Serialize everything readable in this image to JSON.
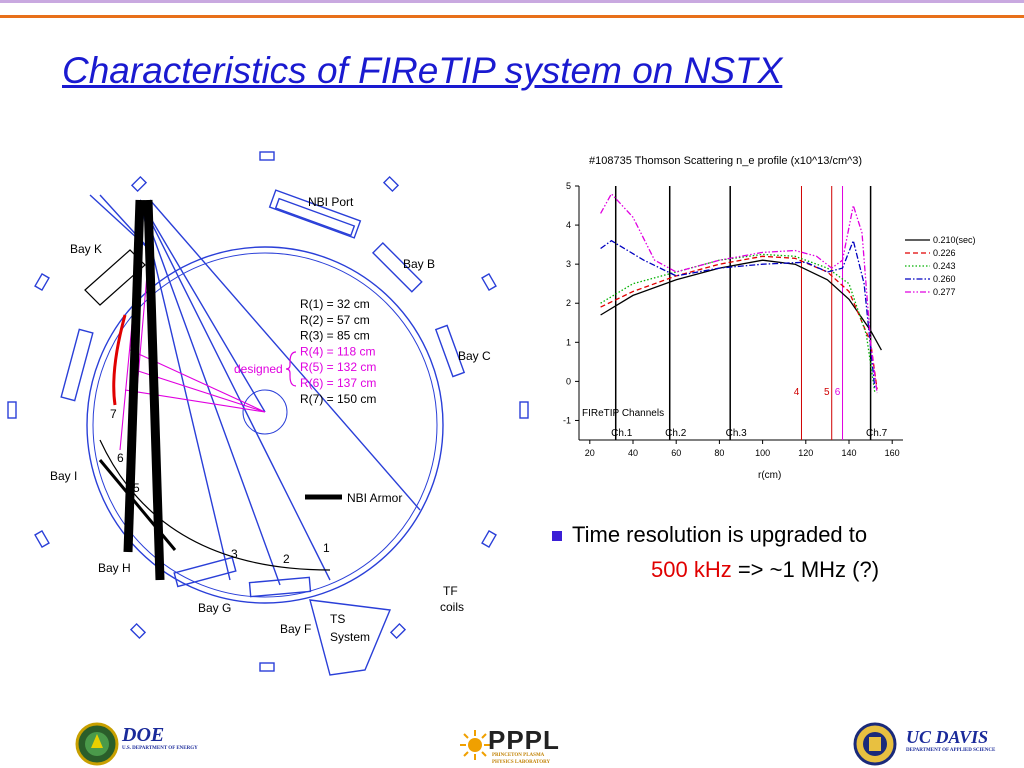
{
  "slide": {
    "title": "Characteristics of FIReTIP system on NSTX",
    "bullet": {
      "line1": "Time resolution is upgraded  to",
      "line2_red": "500 kHz",
      "line2_rest": " => ~1 MHz (?)"
    }
  },
  "diagram": {
    "labels": {
      "nbi_port": "NBI Port",
      "bay_b": "Bay B",
      "bay_c": "Bay C",
      "bay_k": "Bay K",
      "bay_i": "Bay I",
      "bay_h": "Bay H",
      "bay_g": "Bay G",
      "bay_f": "Bay F",
      "ts_system_1": "TS",
      "ts_system_2": "System",
      "tf_coils_1": "TF",
      "tf_coils_2": "coils",
      "nbi_armor": "NBI Armor",
      "designed": "designed",
      "num_1": "1",
      "num_2": "2",
      "num_3": "3",
      "num_5": "5",
      "num_6": "6",
      "num_7": "7"
    },
    "radii": [
      {
        "text": "R(1) = 32 cm",
        "designed": false
      },
      {
        "text": "R(2) = 57 cm",
        "designed": false
      },
      {
        "text": "R(3) = 85 cm",
        "designed": false
      },
      {
        "text": "R(4) = 118 cm",
        "designed": true
      },
      {
        "text": "R(5) = 132 cm",
        "designed": true
      },
      {
        "text": "R(6) = 137 cm",
        "designed": true
      },
      {
        "text": "R(7) = 150 cm",
        "designed": false
      }
    ]
  },
  "chart_data": {
    "type": "line",
    "title": "#108735 Thomson Scattering n_e profile (x10^13/cm^3)",
    "xlabel": "r(cm)",
    "ylabel": "",
    "xlim": [
      15,
      165
    ],
    "ylim": [
      -1.5,
      5
    ],
    "xticks": [
      20,
      40,
      60,
      80,
      100,
      120,
      140,
      160
    ],
    "yticks": [
      -1,
      0,
      1,
      2,
      3,
      4,
      5
    ],
    "legend_position": "right",
    "grid": false,
    "series": [
      {
        "name": "0.210(sec)",
        "color": "#000000",
        "dash": "solid",
        "points": [
          [
            25,
            1.7
          ],
          [
            40,
            2.2
          ],
          [
            60,
            2.6
          ],
          [
            80,
            2.9
          ],
          [
            100,
            3.1
          ],
          [
            115,
            3.0
          ],
          [
            130,
            2.6
          ],
          [
            140,
            2.1
          ],
          [
            150,
            1.3
          ],
          [
            155,
            0.8
          ]
        ]
      },
      {
        "name": "0.226",
        "color": "#e00000",
        "dash": "dash",
        "points": [
          [
            25,
            1.9
          ],
          [
            40,
            2.3
          ],
          [
            60,
            2.7
          ],
          [
            80,
            3.0
          ],
          [
            100,
            3.2
          ],
          [
            115,
            3.15
          ],
          [
            130,
            2.8
          ],
          [
            140,
            2.3
          ],
          [
            150,
            1.0
          ],
          [
            153,
            -0.2
          ]
        ]
      },
      {
        "name": "0.243",
        "color": "#00b000",
        "dash": "dot",
        "points": [
          [
            25,
            2.0
          ],
          [
            40,
            2.5
          ],
          [
            60,
            2.8
          ],
          [
            80,
            3.1
          ],
          [
            100,
            3.25
          ],
          [
            115,
            3.2
          ],
          [
            130,
            2.9
          ],
          [
            140,
            2.5
          ],
          [
            148,
            1.2
          ],
          [
            152,
            -0.3
          ]
        ]
      },
      {
        "name": "0.260",
        "color": "#0000c0",
        "dash": "dashdot",
        "points": [
          [
            25,
            3.4
          ],
          [
            30,
            3.6
          ],
          [
            45,
            3.1
          ],
          [
            60,
            2.7
          ],
          [
            80,
            2.9
          ],
          [
            100,
            3.0
          ],
          [
            120,
            3.05
          ],
          [
            130,
            2.8
          ],
          [
            137,
            2.9
          ],
          [
            142,
            3.6
          ],
          [
            147,
            2.5
          ],
          [
            152,
            -0.2
          ]
        ]
      },
      {
        "name": "0.277",
        "color": "#e000e0",
        "dash": "dashdotdot",
        "points": [
          [
            25,
            4.3
          ],
          [
            30,
            4.8
          ],
          [
            40,
            4.2
          ],
          [
            50,
            3.1
          ],
          [
            60,
            2.8
          ],
          [
            80,
            3.1
          ],
          [
            100,
            3.3
          ],
          [
            115,
            3.35
          ],
          [
            125,
            3.2
          ],
          [
            132,
            2.9
          ],
          [
            137,
            3.1
          ],
          [
            142,
            4.5
          ],
          [
            146,
            3.8
          ],
          [
            150,
            1.0
          ],
          [
            153,
            -0.3
          ]
        ]
      }
    ],
    "channels": [
      {
        "label": "Ch.1",
        "r": 32,
        "color": "#000000"
      },
      {
        "label": "Ch.2",
        "r": 57,
        "color": "#000000"
      },
      {
        "label": "Ch.3",
        "r": 85,
        "color": "#000000"
      },
      {
        "label": "4",
        "r": 118,
        "color": "#d00000"
      },
      {
        "label": "5",
        "r": 132,
        "color": "#d00000"
      },
      {
        "label": "6",
        "r": 137,
        "color": "#e000e0"
      },
      {
        "label": "Ch.7",
        "r": 150,
        "color": "#000000"
      }
    ],
    "annotation": "FIReTIP  Channels"
  },
  "footer": {
    "doe": "DOE",
    "doe_sub": "U.S. DEPARTMENT OF ENERGY",
    "pppl": "PPPL",
    "pppl_sub1": "PRINCETON PLASMA",
    "pppl_sub2": "PHYSICS LABORATORY",
    "ucdavis": "UC DAVIS",
    "ucdavis_sub": "DEPARTMENT OF APPLIED SCIENCE"
  }
}
